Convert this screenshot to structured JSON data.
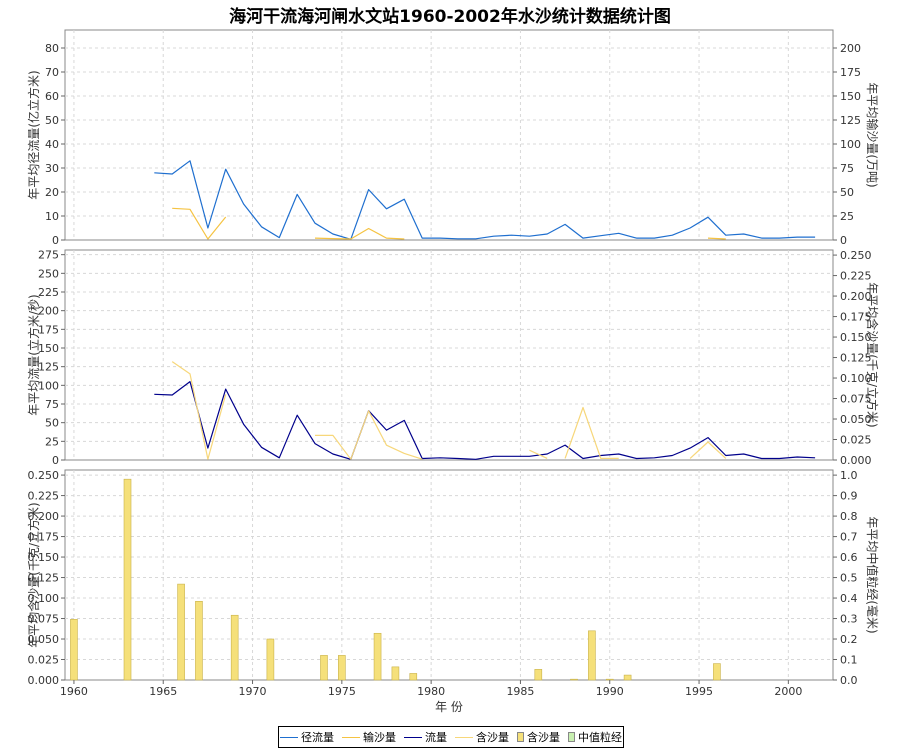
{
  "title": "海河干流海河闸水文站1960-2002年水沙统计数据统计图",
  "legend": {
    "items": [
      {
        "label": "径流量",
        "kind": "line",
        "color": "#1f6fcf"
      },
      {
        "label": "输沙量",
        "kind": "line",
        "color": "#f5c342"
      },
      {
        "label": "流量",
        "kind": "line",
        "color": "#00008b"
      },
      {
        "label": "含沙量",
        "kind": "line",
        "color": "#f7d77a"
      },
      {
        "label": "含沙量",
        "kind": "bar",
        "color": "#f5e07a"
      },
      {
        "label": "中值粒经",
        "kind": "bar",
        "color": "#c8f0b0"
      }
    ]
  },
  "chart_data": [
    {
      "type": "line",
      "ylabel": "年平均径流量(亿立方米)",
      "y2label": "年平均输沙量(万吨)",
      "ylim": [
        0,
        87.5
      ],
      "yticks": [
        0,
        10,
        20,
        30,
        40,
        50,
        60,
        70,
        80
      ],
      "y2lim": [
        0,
        218.75
      ],
      "y2ticks": [
        0,
        25,
        50,
        75,
        100,
        125,
        150,
        175,
        200
      ],
      "series": [
        {
          "name": "径流量",
          "axis": "left",
          "color": "#1f6fcf",
          "x": [
            1964.5,
            1965.5,
            1966.5,
            1967.5,
            1968.5,
            1969.5,
            1970.5,
            1971.5,
            1972.5,
            1973.5,
            1974.5,
            1975.5,
            1976.5,
            1977.5,
            1978.5,
            1979.5,
            1980.5,
            1981.5,
            1982.5,
            1983.5,
            1984.5,
            1985.5,
            1986.5,
            1987.5,
            1988.5,
            1989.5,
            1990.5,
            1991.5,
            1992.5,
            1993.5,
            1994.5,
            1995.5,
            1996.5,
            1997.5,
            1998.5,
            1999.5,
            2000.5,
            2001.5
          ],
          "y": [
            28,
            27.5,
            33,
            5,
            29.5,
            15,
            5.5,
            1,
            19,
            7,
            2.5,
            0.3,
            21,
            13,
            17,
            0.8,
            0.8,
            0.5,
            0.5,
            1.6,
            2,
            1.6,
            2.5,
            6.5,
            0.8,
            1.8,
            2.8,
            0.8,
            0.8,
            2,
            5,
            9.5,
            2,
            2.5,
            0.8,
            0.8,
            1.2,
            1.2
          ]
        },
        {
          "name": "输沙量",
          "axis": "right",
          "color": "#f5c342",
          "x": [
            1965.5,
            1966.5,
            1967.5,
            1968.5,
            null,
            1973.5,
            1974.5,
            1975.5,
            1976.5,
            1977.5,
            1978.5,
            null,
            1995.5,
            1996.5
          ],
          "y": [
            33,
            32,
            1,
            24,
            null,
            2,
            1.5,
            1,
            12,
            2,
            1,
            null,
            2,
            1
          ]
        }
      ]
    },
    {
      "type": "line",
      "ylabel": "年平均流量(立方米/秒)",
      "y2label": "年平均含沙量(千克/立方米)",
      "ylim": [
        0,
        281.25
      ],
      "yticks": [
        0,
        25,
        50,
        75,
        100,
        125,
        150,
        175,
        200,
        225,
        250,
        275
      ],
      "y2lim": [
        0,
        0.2562
      ],
      "y2ticks": [
        0,
        0.025,
        0.05,
        0.075,
        0.1,
        0.125,
        0.15,
        0.175,
        0.2,
        0.225,
        0.25
      ],
      "series": [
        {
          "name": "流量",
          "axis": "left",
          "color": "#00008b",
          "x": [
            1964.5,
            1965.5,
            1966.5,
            1967.5,
            1968.5,
            1969.5,
            1970.5,
            1971.5,
            1972.5,
            1973.5,
            1974.5,
            1975.5,
            1976.5,
            1977.5,
            1978.5,
            1979.5,
            1980.5,
            1981.5,
            1982.5,
            1983.5,
            1984.5,
            1985.5,
            1986.5,
            1987.5,
            1988.5,
            1989.5,
            1990.5,
            1991.5,
            1992.5,
            1993.5,
            1994.5,
            1995.5,
            1996.5,
            1997.5,
            1998.5,
            1999.5,
            2000.5,
            2001.5
          ],
          "y": [
            88,
            87,
            105,
            16,
            95,
            48,
            17,
            3,
            60,
            22,
            8,
            1,
            66,
            40,
            53,
            2,
            3,
            2,
            1,
            5,
            5,
            5,
            8,
            20,
            2,
            6,
            8,
            2,
            3,
            6,
            16,
            30,
            6,
            8,
            2,
            2,
            4,
            3
          ]
        },
        {
          "name": "含沙量",
          "axis": "right",
          "color": "#f7d77a",
          "x": [
            1965.5,
            1966.5,
            1967.5,
            1968.5,
            null,
            1973.5,
            1974.5,
            1975.5,
            1976.5,
            1977.5,
            1978.5,
            1979.5,
            null,
            1985.5,
            1986.5,
            null,
            1987.5,
            1988.5,
            1989.5,
            1990.5,
            null,
            1994.5,
            1995.5,
            1996.5
          ],
          "y": [
            0.12,
            0.105,
            0.001,
            0.08,
            null,
            0.03,
            0.03,
            0.001,
            0.06,
            0.018,
            0.008,
            0.001,
            null,
            0.012,
            0.002,
            null,
            0.002,
            0.064,
            0.002,
            0.002,
            null,
            0.002,
            0.022,
            0.002
          ]
        }
      ]
    },
    {
      "type": "bar",
      "ylabel": "年平均含沙量(千克/立方米)",
      "y2label": "年平均中值粒经(毫米)",
      "xlabel": "年 份",
      "xlim": [
        1959.5,
        2002.5
      ],
      "xticks": [
        1960,
        1965,
        1970,
        1975,
        1980,
        1985,
        1990,
        1995,
        2000
      ],
      "ylim": [
        0,
        0.2562
      ],
      "yticks": [
        0,
        0.025,
        0.05,
        0.075,
        0.1,
        0.125,
        0.15,
        0.175,
        0.2,
        0.225,
        0.25
      ],
      "y2lim": [
        0,
        1.025
      ],
      "y2ticks": [
        0,
        0.1,
        0.2,
        0.3,
        0.4,
        0.5,
        0.6,
        0.7,
        0.8,
        0.9,
        1.0
      ],
      "series": [
        {
          "name": "含沙量",
          "axis": "left",
          "color": "#f5e07a",
          "x": [
            1960,
            1963,
            1966,
            1967,
            1969,
            1971,
            1974,
            1975,
            1977,
            1978,
            1979,
            1986,
            1988,
            1989,
            1990,
            1991,
            1996
          ],
          "values": [
            0.074,
            0.245,
            0.117,
            0.096,
            0.079,
            0.05,
            0.03,
            0.03,
            0.057,
            0.016,
            0.008,
            0.013,
            0.001,
            0.06,
            0.001,
            0.006,
            0.02
          ]
        }
      ]
    }
  ]
}
